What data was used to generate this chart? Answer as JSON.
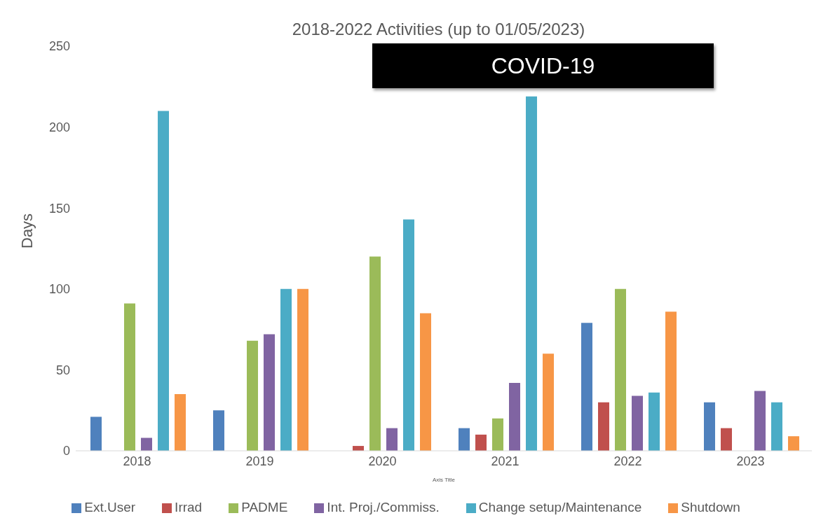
{
  "chart_data": {
    "type": "bar",
    "title": "2018-2022 Activities (up to 01/05/2023)",
    "xlabel": "Axis Title",
    "ylabel": "Days",
    "categories": [
      "2018",
      "2019",
      "2020",
      "2021",
      "2022",
      "2023"
    ],
    "series": [
      {
        "name": "Ext.User",
        "color": "#4f81bd",
        "values": [
          21,
          25,
          null,
          14,
          79,
          30
        ]
      },
      {
        "name": "Irrad",
        "color": "#c0504d",
        "values": [
          null,
          null,
          3,
          10,
          30,
          14
        ]
      },
      {
        "name": "PADME",
        "color": "#9bbb59",
        "values": [
          91,
          68,
          120,
          20,
          100,
          null
        ]
      },
      {
        "name": "Int. Proj./Commiss.",
        "color": "#8064a2",
        "values": [
          8,
          72,
          14,
          42,
          34,
          37
        ]
      },
      {
        "name": "Change setup/Maintenance",
        "color": "#4bacc6",
        "values": [
          210,
          100,
          143,
          219,
          36,
          30
        ]
      },
      {
        "name": "Shutdown",
        "color": "#f79646",
        "values": [
          35,
          100,
          85,
          60,
          86,
          9
        ]
      }
    ],
    "ylim": [
      0,
      250
    ],
    "yticks": [
      0,
      50,
      100,
      150,
      200,
      250
    ],
    "grid": false,
    "legend": "bottom",
    "annotations": [
      "COVID-19"
    ]
  }
}
